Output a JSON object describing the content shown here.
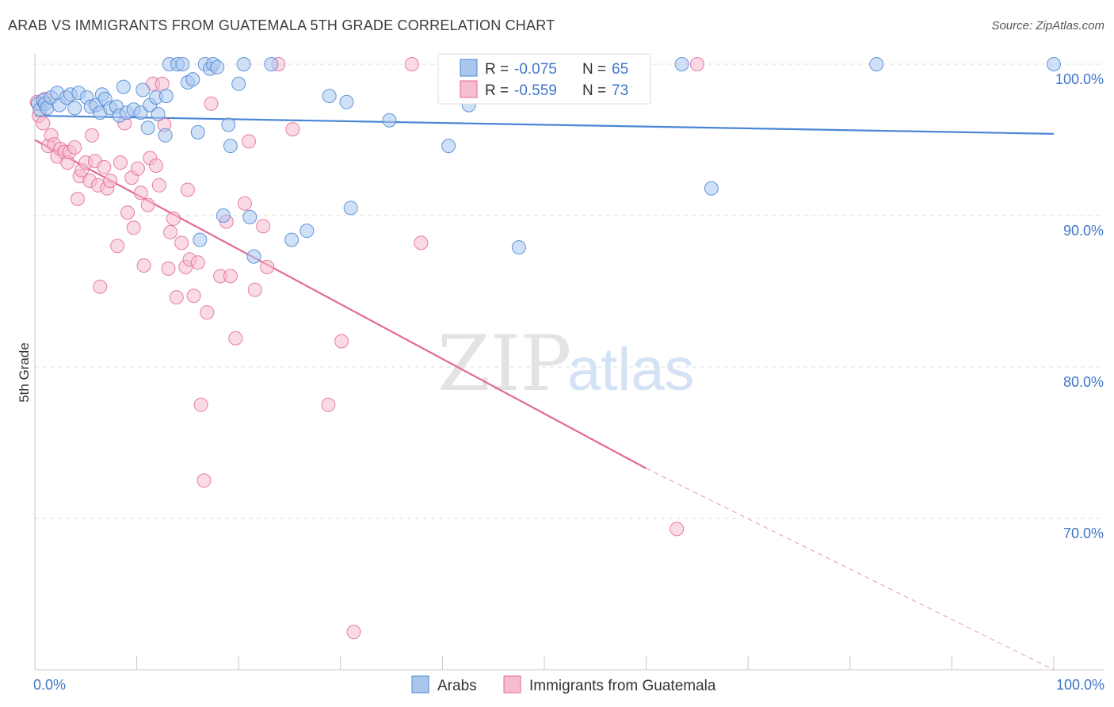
{
  "title": "ARAB VS IMMIGRANTS FROM GUATEMALA 5TH GRADE CORRELATION CHART",
  "source": "Source: ZipAtlas.com",
  "watermark": {
    "zip": "ZIP",
    "atlas": "atlas"
  },
  "colors": {
    "arabs": "#4a86d4",
    "arabs_fill": "#a9c7ee",
    "guatemala": "#e36a96",
    "guatemala_fill": "#f6bcd0",
    "tick": "#3f76c8",
    "grid": "#dddddd"
  },
  "legend": {
    "rows": [
      {
        "r_label": "R =",
        "r_value": "-0.075",
        "n_label": "N =",
        "n_value": "65"
      },
      {
        "r_label": "R =",
        "r_value": "-0.559",
        "n_label": "N =",
        "n_value": "73"
      }
    ]
  },
  "chart_data": {
    "type": "scatter",
    "xlabel": "",
    "ylabel": "5th Grade",
    "xlim": [
      0,
      105
    ],
    "ylim": [
      60.5,
      100.5
    ],
    "x_tick_labels": {
      "left": "0.0%",
      "right": "100.0%"
    },
    "y_ticks": [
      {
        "value": 100,
        "label": "100.0%"
      },
      {
        "value": 90,
        "label": "90.0%"
      },
      {
        "value": 80,
        "label": "80.0%"
      },
      {
        "value": 70,
        "label": "70.0%"
      }
    ],
    "grid": true,
    "legend_position": "top-center",
    "series": [
      {
        "name": "Arabs",
        "trend": {
          "x": [
            0,
            100
          ],
          "y": [
            96.6,
            95.4
          ],
          "dashed_from": null
        },
        "points": [
          [
            0.3,
            97.4
          ],
          [
            0.5,
            97.0
          ],
          [
            0.8,
            97.6
          ],
          [
            1.0,
            97.4
          ],
          [
            1.2,
            97.1
          ],
          [
            1.6,
            97.8
          ],
          [
            2.2,
            98.1
          ],
          [
            2.4,
            97.3
          ],
          [
            3.1,
            97.8
          ],
          [
            3.5,
            98.0
          ],
          [
            3.9,
            97.1
          ],
          [
            4.3,
            98.1
          ],
          [
            5.1,
            97.8
          ],
          [
            5.5,
            97.2
          ],
          [
            6.0,
            97.3
          ],
          [
            6.4,
            96.8
          ],
          [
            6.6,
            98.0
          ],
          [
            6.9,
            97.7
          ],
          [
            7.4,
            97.1
          ],
          [
            8.0,
            97.2
          ],
          [
            8.3,
            96.6
          ],
          [
            8.7,
            98.5
          ],
          [
            9.0,
            96.8
          ],
          [
            9.7,
            97.0
          ],
          [
            10.4,
            96.8
          ],
          [
            10.6,
            98.3
          ],
          [
            11.1,
            95.8
          ],
          [
            11.3,
            97.3
          ],
          [
            11.9,
            97.8
          ],
          [
            12.1,
            96.7
          ],
          [
            12.8,
            95.3
          ],
          [
            12.9,
            97.9
          ],
          [
            13.2,
            100.0
          ],
          [
            14.0,
            100.0
          ],
          [
            14.5,
            100.0
          ],
          [
            15.0,
            98.8
          ],
          [
            15.5,
            99.0
          ],
          [
            16.0,
            95.5
          ],
          [
            16.2,
            88.4
          ],
          [
            16.7,
            100.0
          ],
          [
            17.2,
            99.7
          ],
          [
            17.5,
            100.0
          ],
          [
            17.9,
            99.8
          ],
          [
            18.5,
            90.0
          ],
          [
            19.0,
            96.0
          ],
          [
            19.2,
            94.6
          ],
          [
            20.0,
            98.7
          ],
          [
            20.5,
            100.0
          ],
          [
            21.1,
            89.9
          ],
          [
            21.5,
            87.3
          ],
          [
            23.2,
            100.0
          ],
          [
            25.2,
            88.4
          ],
          [
            26.7,
            89.0
          ],
          [
            28.9,
            97.9
          ],
          [
            30.6,
            97.5
          ],
          [
            31.0,
            90.5
          ],
          [
            34.8,
            96.3
          ],
          [
            40.6,
            94.6
          ],
          [
            42.6,
            97.3
          ],
          [
            45.4,
            100.0
          ],
          [
            47.5,
            87.9
          ],
          [
            48.5,
            100.0
          ],
          [
            63.5,
            100.0
          ],
          [
            66.4,
            91.8
          ],
          [
            82.6,
            100.0
          ],
          [
            100.0,
            100.0
          ]
        ]
      },
      {
        "name": "Immigrants from Guatemala",
        "trend": {
          "x": [
            0,
            60
          ],
          "y": [
            95.0,
            73.3
          ],
          "dashed_to": {
            "x": 100,
            "y": 59.5
          }
        },
        "points": [
          [
            0.2,
            97.5
          ],
          [
            0.4,
            96.6
          ],
          [
            0.8,
            96.1
          ],
          [
            1.0,
            97.7
          ],
          [
            1.3,
            94.6
          ],
          [
            1.6,
            95.3
          ],
          [
            1.9,
            94.7
          ],
          [
            2.2,
            93.9
          ],
          [
            2.5,
            94.4
          ],
          [
            2.9,
            94.2
          ],
          [
            3.2,
            93.5
          ],
          [
            3.4,
            94.2
          ],
          [
            3.9,
            94.5
          ],
          [
            4.2,
            91.1
          ],
          [
            4.4,
            92.6
          ],
          [
            4.6,
            93.0
          ],
          [
            5.0,
            93.5
          ],
          [
            5.4,
            92.3
          ],
          [
            5.6,
            95.3
          ],
          [
            5.9,
            93.6
          ],
          [
            6.2,
            92.0
          ],
          [
            6.4,
            85.3
          ],
          [
            6.8,
            93.2
          ],
          [
            7.1,
            91.8
          ],
          [
            7.4,
            92.3
          ],
          [
            8.1,
            88.0
          ],
          [
            8.4,
            93.5
          ],
          [
            8.8,
            96.1
          ],
          [
            9.1,
            90.2
          ],
          [
            9.5,
            92.5
          ],
          [
            9.7,
            89.2
          ],
          [
            10.1,
            93.1
          ],
          [
            10.4,
            91.5
          ],
          [
            10.7,
            86.7
          ],
          [
            11.1,
            90.7
          ],
          [
            11.3,
            93.8
          ],
          [
            11.6,
            98.7
          ],
          [
            11.9,
            93.3
          ],
          [
            12.2,
            92.0
          ],
          [
            12.5,
            98.7
          ],
          [
            12.7,
            96.0
          ],
          [
            13.1,
            86.5
          ],
          [
            13.3,
            88.9
          ],
          [
            13.6,
            89.8
          ],
          [
            13.9,
            84.6
          ],
          [
            14.4,
            88.2
          ],
          [
            14.8,
            86.6
          ],
          [
            15.0,
            91.7
          ],
          [
            15.2,
            87.1
          ],
          [
            15.6,
            84.7
          ],
          [
            16.0,
            86.9
          ],
          [
            16.3,
            77.5
          ],
          [
            16.6,
            72.5
          ],
          [
            16.9,
            83.6
          ],
          [
            17.3,
            97.4
          ],
          [
            18.2,
            86.0
          ],
          [
            18.8,
            89.6
          ],
          [
            19.2,
            86.0
          ],
          [
            19.7,
            81.9
          ],
          [
            20.6,
            90.8
          ],
          [
            21.0,
            94.9
          ],
          [
            21.6,
            85.1
          ],
          [
            22.4,
            89.3
          ],
          [
            22.8,
            86.6
          ],
          [
            23.9,
            100.0
          ],
          [
            25.3,
            95.7
          ],
          [
            28.8,
            77.5
          ],
          [
            30.1,
            81.7
          ],
          [
            31.3,
            62.5
          ],
          [
            37.0,
            100.0
          ],
          [
            37.9,
            88.2
          ],
          [
            63.0,
            69.3
          ],
          [
            65.0,
            100.0
          ]
        ]
      }
    ]
  },
  "bottom_legend": [
    {
      "label": "Arabs"
    },
    {
      "label": "Immigrants from Guatemala"
    }
  ]
}
